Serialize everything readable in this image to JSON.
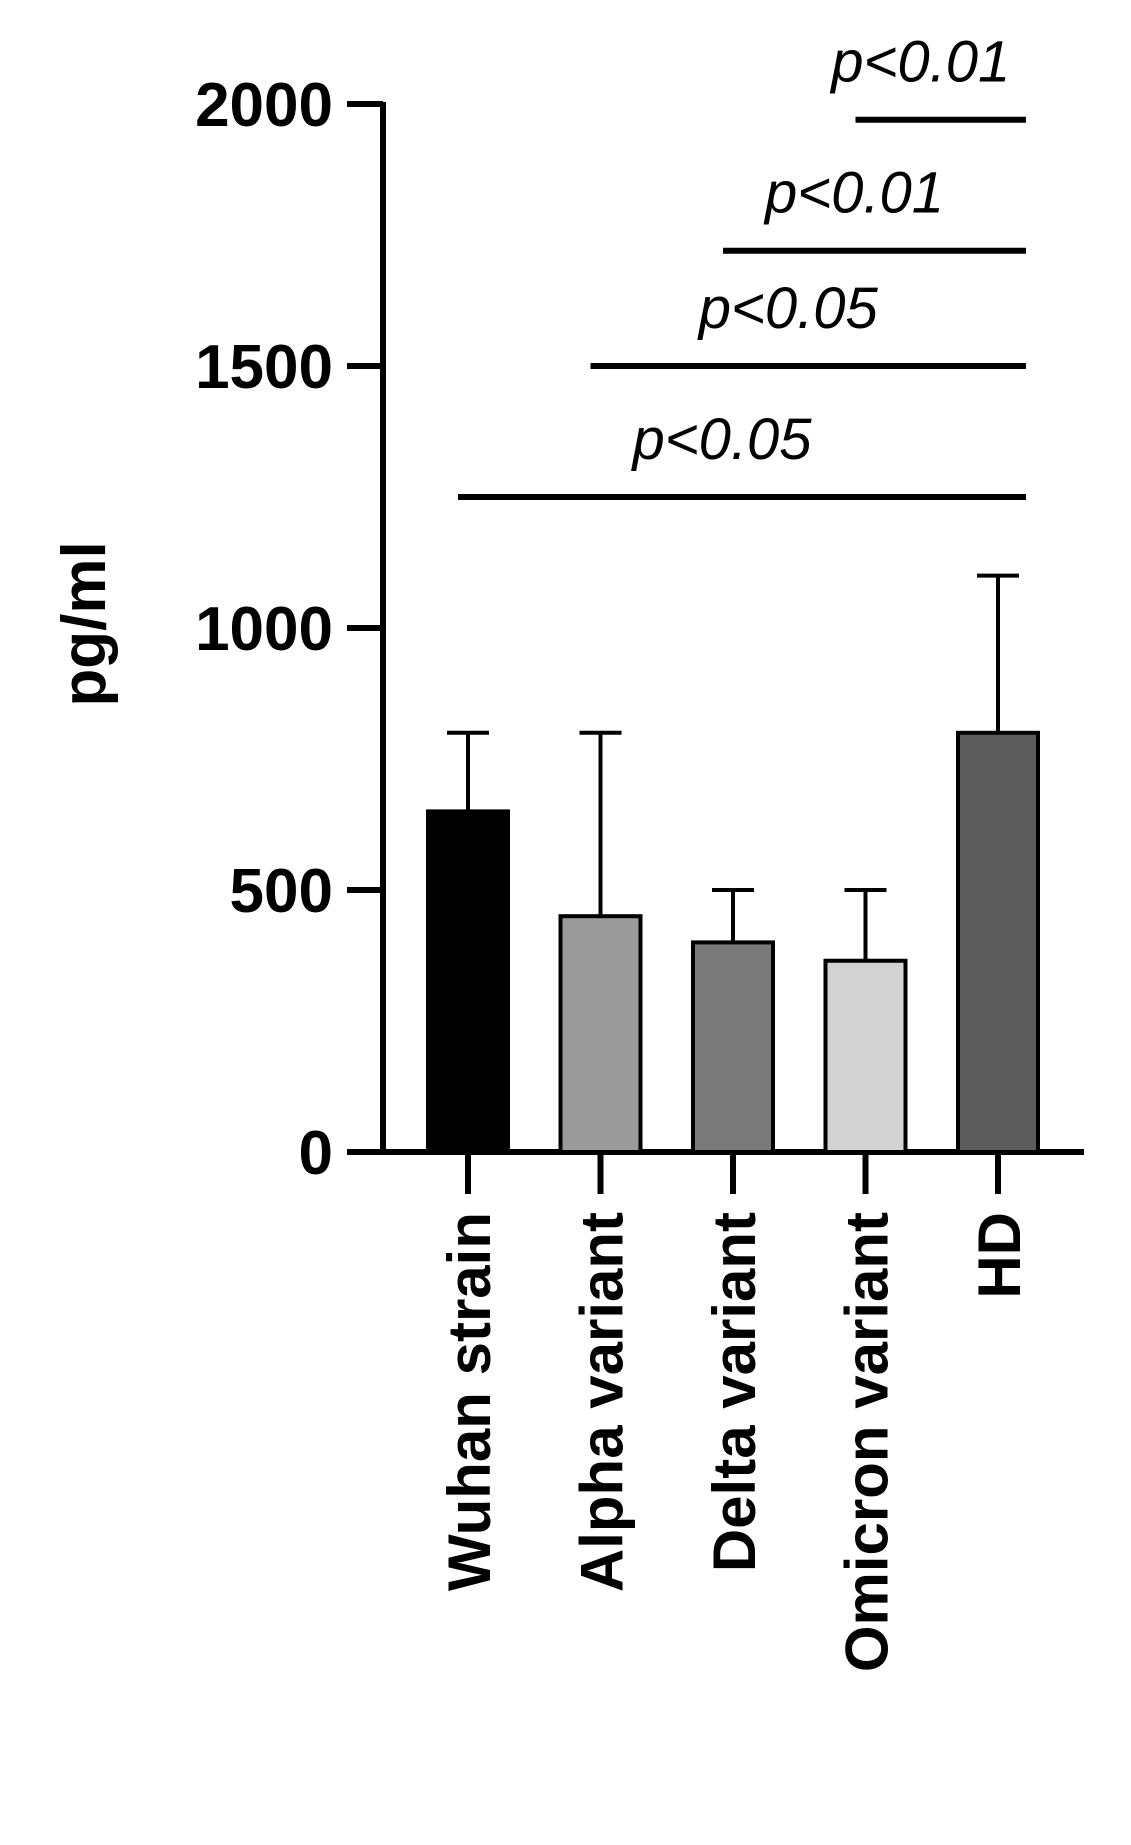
{
  "chart_data": {
    "type": "bar",
    "y_label": "pg/ml",
    "categories": [
      "Wuhan strain",
      "Alpha variant",
      "Delta variant",
      "Omicron variant",
      "HD"
    ],
    "values": [
      650,
      450,
      400,
      365,
      800
    ],
    "errors": [
      150,
      350,
      100,
      135,
      300
    ],
    "colors": [
      "#000000",
      "#9a9a9a",
      "#7a7a7a",
      "#d2d2d2",
      "#5c5c5c"
    ],
    "ylim": [
      0,
      2000
    ],
    "yticks": [
      0,
      500,
      1000,
      1500,
      2000
    ],
    "annotations": [
      {
        "text": "p<0.05",
        "y": 1250,
        "between": [
          "Wuhan strain",
          "HD"
        ]
      },
      {
        "text": "p<0.05",
        "y": 1500,
        "between": [
          "Alpha variant",
          "HD"
        ]
      },
      {
        "text": "p<0.01",
        "y": 1720,
        "between": [
          "Delta variant",
          "HD"
        ]
      },
      {
        "text": "p<0.01",
        "y": 1970,
        "between": [
          "Omicron variant",
          "HD"
        ]
      }
    ]
  }
}
